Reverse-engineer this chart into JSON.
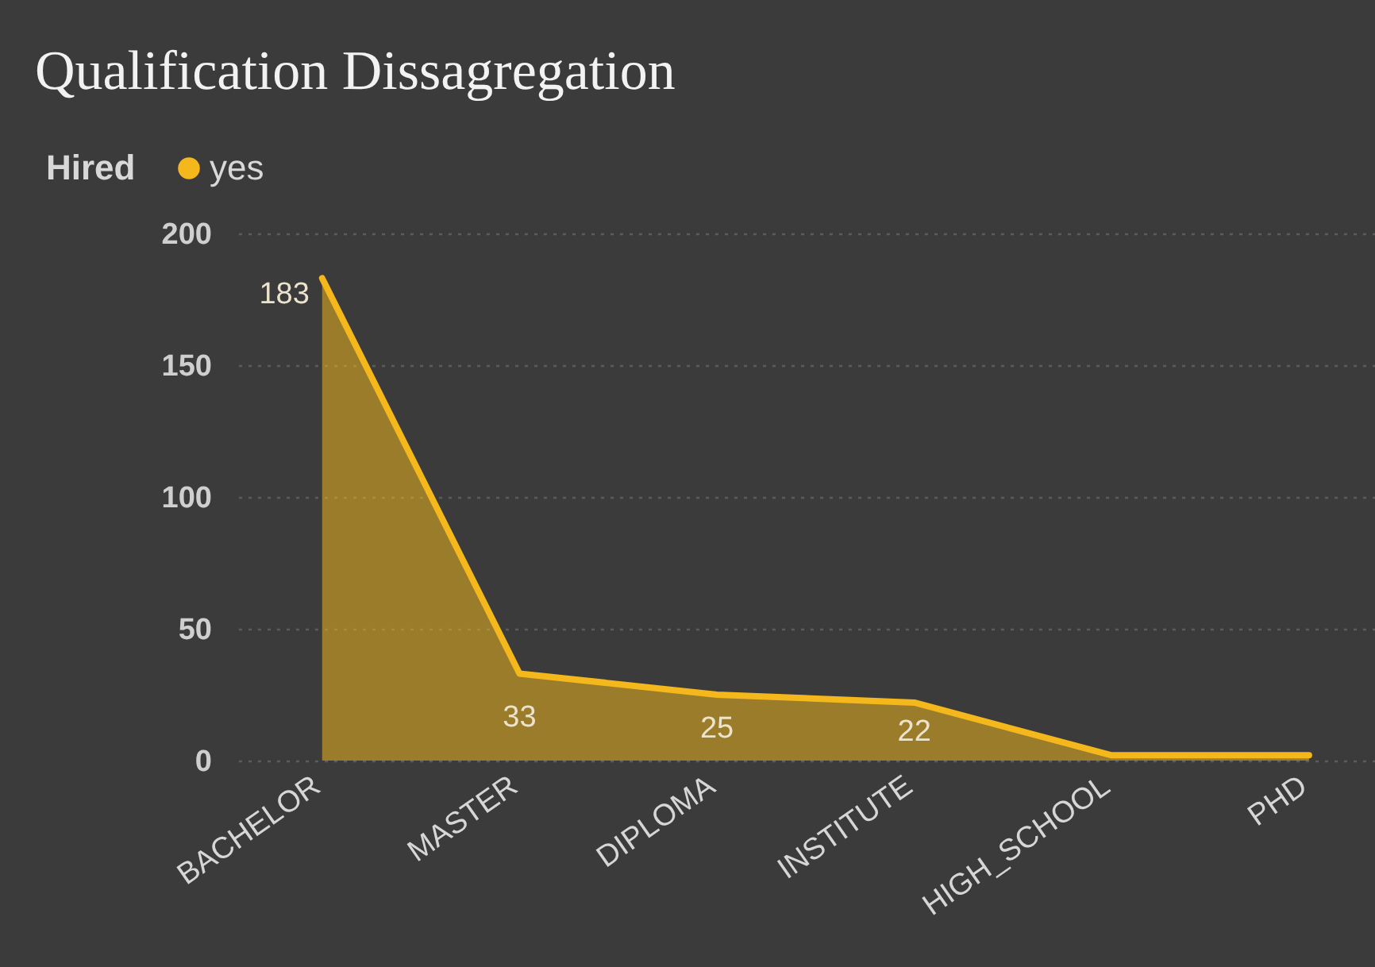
{
  "chart_data": {
    "type": "area",
    "title": "Qualification Dissagregation",
    "legend_title": "Hired",
    "categories": [
      "BACHELOR",
      "MASTER",
      "DIPLOMA",
      "INSTITUTE",
      "HIGH_SCHOOL",
      "PHD"
    ],
    "series": [
      {
        "name": "yes",
        "color": "#f4b81c",
        "values": [
          183,
          33,
          25,
          22,
          2,
          2
        ],
        "value_labels": [
          "183",
          "33",
          "25",
          "22",
          null,
          null
        ]
      }
    ],
    "ylim": [
      0,
      200
    ],
    "yticks": [
      0,
      50,
      100,
      150,
      200
    ],
    "grid": "y",
    "legend": "top left",
    "line_style": "solid"
  }
}
